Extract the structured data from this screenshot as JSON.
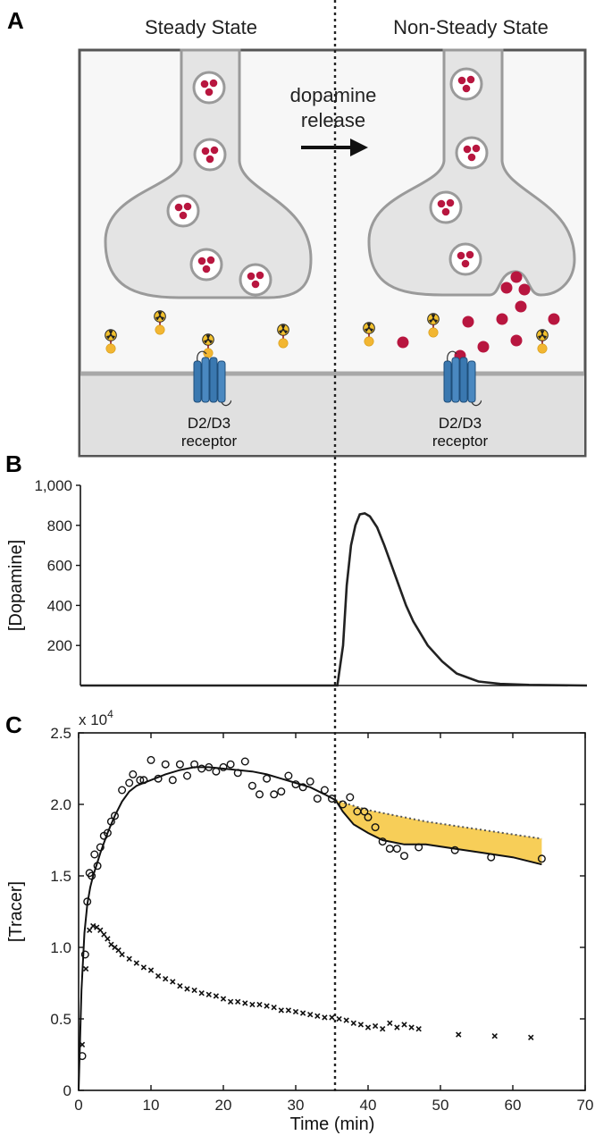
{
  "panel_a": {
    "letter": "A",
    "left_title": "Steady State",
    "right_title": "Non-Steady State",
    "arrow_label_line1": "dopamine",
    "arrow_label_line2": "release",
    "receptor_line1": "D2/D3",
    "receptor_line2": "receptor",
    "colors": {
      "dopamine": "#b8163f",
      "tracer_ball": "#f2b632",
      "receptor": "#3a78b0",
      "membrane": "#e3e3e3"
    }
  },
  "panel_b": {
    "letter": "B",
    "ylabel": "[Dopamine]",
    "y_ticks": [
      "1,000",
      "800",
      "600",
      "400",
      "200"
    ]
  },
  "panel_c": {
    "letter": "C",
    "ylabel": "[Tracer]",
    "xlabel": "Time (min)",
    "y_multiplier": "x 10",
    "y_multiplier_exp": "4",
    "y_ticks": [
      "2.5",
      "2.0",
      "1.5",
      "1.0",
      "0.5",
      "0"
    ],
    "x_ticks": [
      "0",
      "10",
      "20",
      "30",
      "40",
      "50",
      "60",
      "70"
    ],
    "colors": {
      "shade": "#f6c63b"
    }
  },
  "chart_data": [
    {
      "type": "line",
      "panel": "B",
      "ylabel": "[Dopamine]",
      "xlim": [
        0,
        70
      ],
      "ylim": [
        0,
        1000
      ],
      "series": [
        {
          "x": [
            0,
            35.5,
            36.3,
            36.8,
            37.4,
            38,
            38.6,
            39.3,
            40,
            41,
            42,
            43,
            44,
            45,
            46,
            48,
            50,
            52,
            55,
            58,
            62,
            70
          ],
          "y": [
            0,
            0,
            200,
            500,
            700,
            800,
            855,
            860,
            845,
            790,
            700,
            600,
            500,
            400,
            320,
            200,
            120,
            60,
            20,
            8,
            3,
            0
          ]
        }
      ]
    },
    {
      "type": "scatter",
      "panel": "C",
      "xlabel": "Time (min)",
      "ylabel": "[Tracer]",
      "xlim": [
        0,
        70
      ],
      "ylim": [
        0,
        2.5
      ],
      "y_scale_note": "x 10^4",
      "vline_x": 35.5,
      "series": [
        {
          "marker": "circle",
          "x": [
            0.5,
            0.9,
            1.2,
            1.5,
            1.8,
            2.2,
            2.6,
            3.0,
            3.5,
            4.0,
            4.5,
            5.0,
            6.0,
            7.0,
            7.5,
            8.5,
            9.0,
            10.0,
            11.0,
            12.0,
            13.0,
            14.0,
            15.0,
            16.0,
            17.0,
            18.0,
            19.0,
            20.0,
            21.0,
            22.0,
            23.0,
            24.0,
            25.0,
            26.0,
            27.0,
            28.0,
            29.0,
            30.0,
            31.0,
            32.0,
            33.0,
            34.0,
            35.0,
            36.5,
            37.5,
            38.5,
            39.5,
            40.0,
            41.0,
            42.0,
            43.0,
            44.0,
            45.0,
            47.0,
            52.0,
            57.0,
            64.0
          ],
          "y": [
            0.24,
            0.95,
            1.32,
            1.52,
            1.5,
            1.65,
            1.57,
            1.7,
            1.78,
            1.8,
            1.88,
            1.92,
            2.1,
            2.15,
            2.21,
            2.17,
            2.17,
            2.31,
            2.18,
            2.28,
            2.17,
            2.28,
            2.2,
            2.28,
            2.25,
            2.26,
            2.23,
            2.26,
            2.28,
            2.22,
            2.3,
            2.13,
            2.07,
            2.18,
            2.07,
            2.09,
            2.2,
            2.14,
            2.12,
            2.16,
            2.04,
            2.1,
            2.04,
            2.0,
            2.05,
            1.95,
            1.95,
            1.91,
            1.84,
            1.74,
            1.69,
            1.69,
            1.64,
            1.7,
            1.68,
            1.63,
            1.62
          ]
        },
        {
          "marker": "cross",
          "x": [
            0.5,
            1.0,
            1.5,
            2.0,
            2.5,
            3.0,
            3.5,
            4.0,
            4.5,
            5.0,
            5.5,
            6.0,
            7.0,
            8.0,
            9.0,
            10.0,
            11.0,
            12.0,
            13.0,
            14.0,
            15.0,
            16.0,
            17.0,
            18.0,
            19.0,
            20.0,
            21.0,
            22.0,
            23.0,
            24.0,
            25.0,
            26.0,
            27.0,
            28.0,
            29.0,
            30.0,
            31.0,
            32.0,
            33.0,
            34.0,
            35.0,
            36.0,
            37.0,
            38.0,
            39.0,
            40.0,
            41.0,
            42.0,
            43.0,
            44.0,
            45.0,
            46.0,
            47.0,
            52.5,
            57.5,
            62.5
          ],
          "y": [
            0.32,
            0.85,
            1.12,
            1.15,
            1.14,
            1.12,
            1.09,
            1.06,
            1.02,
            1.0,
            0.98,
            0.95,
            0.92,
            0.89,
            0.86,
            0.84,
            0.8,
            0.78,
            0.76,
            0.73,
            0.71,
            0.7,
            0.68,
            0.67,
            0.66,
            0.64,
            0.62,
            0.62,
            0.61,
            0.6,
            0.6,
            0.59,
            0.58,
            0.56,
            0.56,
            0.55,
            0.54,
            0.53,
            0.52,
            0.51,
            0.51,
            0.5,
            0.49,
            0.47,
            0.46,
            0.44,
            0.45,
            0.43,
            0.47,
            0.44,
            0.46,
            0.44,
            0.43,
            0.39,
            0.38,
            0.37
          ]
        },
        {
          "marker": "line",
          "x": [
            0,
            0.4,
            0.8,
            1.2,
            1.6,
            2.0,
            2.5,
            3.0,
            3.5,
            4.0,
            4.5,
            5.0,
            6.0,
            7.0,
            8.0,
            9.0,
            10.0,
            12.0,
            14.0,
            16.0,
            18.0,
            20.0,
            22.0,
            24.0,
            26.0,
            28.0,
            30.0,
            32.0,
            34.0,
            35.5,
            36.5,
            38.0,
            40.0,
            42.0,
            45.0,
            48.0,
            52.0,
            56.0,
            60.0,
            64.0
          ],
          "y": [
            0,
            0.7,
            1.1,
            1.3,
            1.42,
            1.5,
            1.58,
            1.66,
            1.73,
            1.8,
            1.86,
            1.92,
            2.02,
            2.09,
            2.13,
            2.15,
            2.17,
            2.21,
            2.24,
            2.26,
            2.26,
            2.25,
            2.24,
            2.23,
            2.21,
            2.18,
            2.15,
            2.12,
            2.07,
            2.03,
            1.95,
            1.86,
            1.8,
            1.75,
            1.72,
            1.72,
            1.69,
            1.66,
            1.63,
            1.58
          ]
        },
        {
          "marker": "dotted",
          "x": [
            35.5,
            38,
            40,
            44,
            48,
            52,
            56,
            60,
            64
          ],
          "y": [
            2.03,
            1.99,
            1.96,
            1.92,
            1.88,
            1.85,
            1.82,
            1.79,
            1.76
          ]
        }
      ]
    }
  ]
}
